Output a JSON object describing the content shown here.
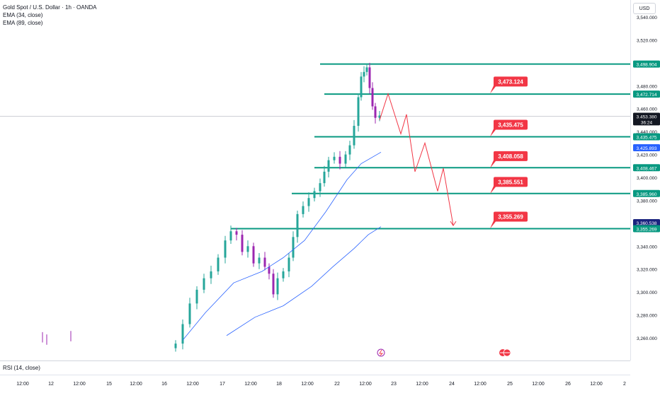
{
  "legend": {
    "symbol": "Gold Spot / U.S. Dollar · 1h · OANDA",
    "ema1": "EMA (34, close)",
    "ema2": "EMA (89, close)"
  },
  "currency_button": "USD",
  "rsi_label": "RSI (14, close)",
  "price_axis": {
    "ticks": [
      "3,540.000",
      "3,520.000",
      "3,500.000",
      "3,480.000",
      "3,460.000",
      "3,440.000",
      "3,420.000",
      "3,400.000",
      "3,380.000",
      "3,360.000",
      "3,340.000",
      "3,320.000",
      "3,300.000",
      "3,280.000",
      "3,260.000"
    ],
    "tick_values": [
      3540,
      3520,
      3500,
      3480,
      3460,
      3440,
      3420,
      3400,
      3380,
      3360,
      3340,
      3320,
      3300,
      3280,
      3260
    ],
    "line_tags": [
      {
        "text": "3,498.904",
        "value": 3498.904,
        "color": "#089981"
      },
      {
        "text": "3,472.714",
        "value": 3472.714,
        "color": "#089981"
      },
      {
        "text": "3,453.380",
        "value": 3453.38,
        "color": "#131722"
      },
      {
        "text": "36:24",
        "value": 3448.5,
        "color": "#131722"
      },
      {
        "text": "3,435.475",
        "value": 3435.475,
        "color": "#089981"
      },
      {
        "text": "3,425.893",
        "value": 3425.893,
        "color": "#2962ff"
      },
      {
        "text": "3,408.467",
        "value": 3408.467,
        "color": "#089981"
      },
      {
        "text": "3,385.960",
        "value": 3385.96,
        "color": "#089981"
      },
      {
        "text": "3,360.538",
        "value": 3360.538,
        "color": "#1a237e"
      },
      {
        "text": "3,355.269",
        "value": 3355.269,
        "color": "#089981"
      }
    ]
  },
  "time_axis": {
    "labels": [
      "12:00",
      "12",
      "12:00",
      "15",
      "12:00",
      "16",
      "12:00",
      "17",
      "12:00",
      "18",
      "12:00",
      "22",
      "12:00",
      "23",
      "12:00",
      "24",
      "12:00",
      "25",
      "12:00",
      "26",
      "12:00",
      "2"
    ]
  },
  "chart_data": {
    "type": "candlestick",
    "title": "Gold Spot / U.S. Dollar · 1h · OANDA",
    "y_range": [
      3252,
      3545
    ],
    "horizontal_levels": [
      3498.904,
      3472.714,
      3435.475,
      3408.467,
      3385.96,
      3355.269
    ],
    "target_labels": [
      {
        "text": "3,473.124",
        "value": 3473.124
      },
      {
        "text": "3,435.475",
        "value": 3435.475
      },
      {
        "text": "3,408.058",
        "value": 3408.058
      },
      {
        "text": "3,385.551",
        "value": 3385.551
      },
      {
        "text": "3,355.269",
        "value": 3355.269
      }
    ],
    "current_price": 3453.38,
    "projected_path": [
      3450,
      3473,
      3438,
      3455,
      3405,
      3430,
      3388,
      3408,
      3358
    ],
    "colors": {
      "up": "#26a69a",
      "down": "#9c27b0",
      "level": "#089981",
      "ema": "#2962ff",
      "path": "#f23645",
      "label": "#f23645"
    }
  }
}
